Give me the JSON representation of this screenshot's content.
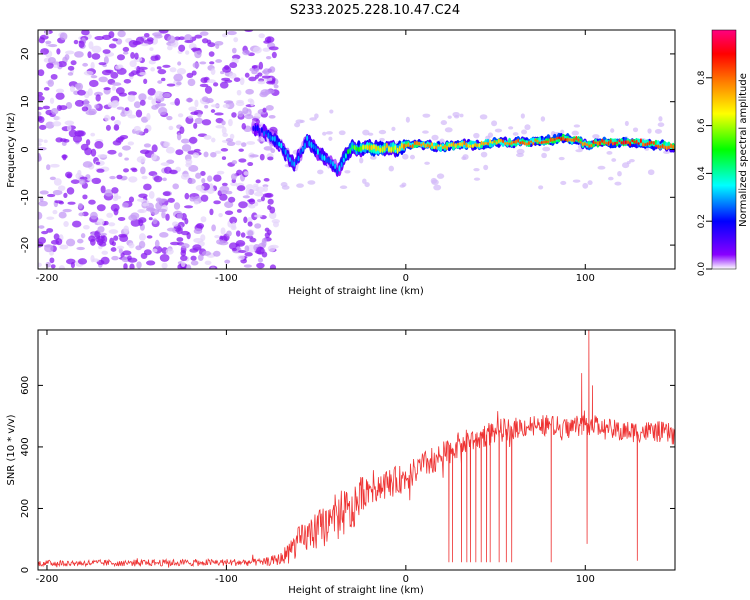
{
  "title": "S233.2025.228.10.47.C24",
  "chart_data": [
    {
      "type": "heatmap",
      "title": "S233.2025.228.10.47.C24",
      "xlabel": "Height of straight line (km)",
      "ylabel": "Frequency (Hz)",
      "xlim": [
        -205,
        150
      ],
      "ylim": [
        -25,
        25
      ],
      "x_ticks": [
        -200,
        -100,
        0,
        100
      ],
      "y_ticks": [
        -20,
        -10,
        0,
        10,
        20
      ],
      "colorbar": {
        "label": "Normalized spectral amplitude",
        "range": [
          0,
          1
        ],
        "ticks": [
          0.0,
          0.2,
          0.4,
          0.6,
          0.8
        ],
        "colors": [
          "#ffffff",
          "#7a00ff",
          "#0000ff",
          "#00ffff",
          "#00ff00",
          "#ffff00",
          "#ff8000",
          "#ff0000",
          "#ff0080"
        ]
      },
      "noise_region": {
        "x_start": -205,
        "x_end": -72,
        "amplitude": 0.1
      },
      "ridge": {
        "x": [
          -85,
          -78,
          -70,
          -62,
          -55,
          -48,
          -42,
          -38,
          -34,
          -30,
          -25,
          -20,
          -15,
          -10,
          -5,
          0,
          10,
          20,
          30,
          40,
          50,
          60,
          70,
          80,
          88,
          95,
          100,
          110,
          120,
          130,
          140,
          150
        ],
        "freq": [
          4.5,
          3.5,
          1.0,
          -3.5,
          2.0,
          -1.0,
          -2.5,
          -4.5,
          -1.5,
          0.5,
          0.0,
          0.5,
          0.0,
          0.5,
          0.0,
          1.0,
          1.0,
          0.5,
          1.0,
          1.0,
          1.5,
          1.5,
          1.5,
          2.0,
          2.5,
          2.0,
          1.0,
          1.5,
          1.5,
          1.5,
          1.0,
          0.5
        ],
        "amplitude": [
          0.15,
          0.22,
          0.3,
          0.25,
          0.35,
          0.3,
          0.28,
          0.25,
          0.4,
          0.5,
          0.55,
          0.75,
          0.6,
          0.7,
          0.6,
          0.8,
          0.75,
          0.7,
          0.75,
          0.7,
          0.75,
          0.8,
          0.8,
          0.85,
          0.85,
          0.8,
          0.8,
          0.85,
          0.9,
          0.85,
          0.8,
          0.75
        ]
      }
    },
    {
      "type": "line",
      "xlabel": "Height of straight line (km)",
      "ylabel": "SNR (10 * v/v)",
      "xlim": [
        -205,
        150
      ],
      "ylim": [
        0,
        780
      ],
      "x_ticks": [
        -200,
        -100,
        0,
        100
      ],
      "y_ticks": [
        0,
        200,
        400,
        600
      ],
      "color": "#ee3333",
      "envelope": {
        "x": [
          -205,
          -80,
          -70,
          -60,
          -50,
          -40,
          -34,
          -30,
          -25,
          -20,
          -10,
          0,
          10,
          20,
          30,
          40,
          50,
          60,
          70,
          80,
          90,
          100,
          110,
          120,
          130,
          140,
          150
        ],
        "mean": [
          22,
          25,
          35,
          90,
          130,
          160,
          190,
          180,
          250,
          270,
          280,
          300,
          340,
          370,
          410,
          430,
          450,
          460,
          470,
          470,
          460,
          480,
          460,
          450,
          450,
          450,
          440
        ],
        "spread": [
          10,
          12,
          20,
          50,
          60,
          80,
          80,
          70,
          60,
          55,
          50,
          45,
          45,
          45,
          40,
          40,
          40,
          35,
          35,
          35,
          35,
          40,
          35,
          35,
          35,
          35,
          35
        ]
      },
      "dropouts": [
        {
          "x": 24,
          "y": 25
        },
        {
          "x": 26,
          "y": 25
        },
        {
          "x": 31,
          "y": 25
        },
        {
          "x": 34,
          "y": 25
        },
        {
          "x": 36,
          "y": 25
        },
        {
          "x": 39,
          "y": 25
        },
        {
          "x": 42,
          "y": 25
        },
        {
          "x": 45,
          "y": 25
        },
        {
          "x": 47,
          "y": 25
        },
        {
          "x": 52,
          "y": 25
        },
        {
          "x": 56,
          "y": 25
        },
        {
          "x": 59,
          "y": 25
        },
        {
          "x": 81,
          "y": 25
        },
        {
          "x": 101,
          "y": 85
        },
        {
          "x": 129,
          "y": 30
        }
      ],
      "spikes": [
        {
          "x": 98,
          "y": 640
        },
        {
          "x": 102,
          "y": 780
        },
        {
          "x": 104,
          "y": 600
        }
      ]
    }
  ]
}
